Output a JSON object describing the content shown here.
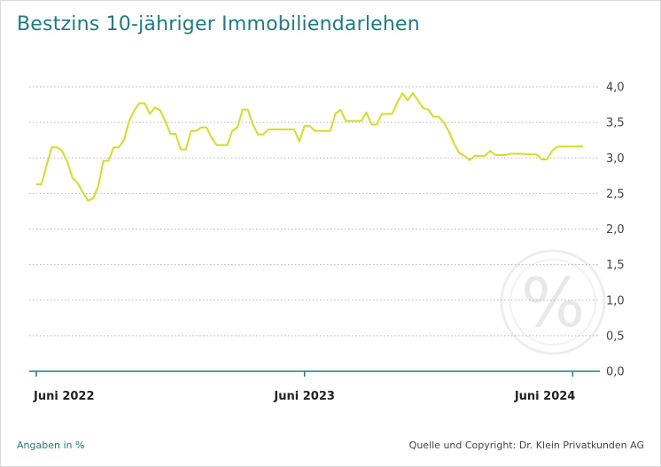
{
  "chart_data": {
    "type": "line",
    "title": "Bestzins 10-jähriger Immobiliendarlehen",
    "unit_note": "Angaben in %",
    "source": "Quelle und Copyright: Dr. Klein Privatkunden AG",
    "ylim": [
      0,
      4
    ],
    "yticks": [
      "0,0",
      "0,5",
      "1,0",
      "1,5",
      "2,0",
      "2,5",
      "3,0",
      "3,5",
      "4,0"
    ],
    "ytick_values": [
      0,
      0.5,
      1,
      1.5,
      2,
      2.5,
      3,
      3.5,
      4
    ],
    "xticks": [
      {
        "label": "Juni 2022",
        "index": 0
      },
      {
        "label": "Juni 2023",
        "index": 52
      },
      {
        "label": "Juni 2024",
        "index": 104
      }
    ],
    "grid": true,
    "line_color": "#d6dc20",
    "accent_color": "#1b7d84",
    "watermark_icon": "percent-icon",
    "series": [
      {
        "values": [
          2.63,
          2.63,
          2.9,
          3.15,
          3.15,
          3.1,
          2.95,
          2.72,
          2.65,
          2.52,
          2.4,
          2.43,
          2.6,
          2.96,
          2.96,
          3.15,
          3.15,
          3.25,
          3.52,
          3.67,
          3.77,
          3.77,
          3.62,
          3.71,
          3.67,
          3.52,
          3.34,
          3.34,
          3.12,
          3.12,
          3.38,
          3.38,
          3.43,
          3.43,
          3.28,
          3.18,
          3.18,
          3.18,
          3.38,
          3.43,
          3.68,
          3.68,
          3.47,
          3.33,
          3.33,
          3.4,
          3.4,
          3.4,
          3.4,
          3.4,
          3.4,
          3.23,
          3.45,
          3.45,
          3.38,
          3.38,
          3.38,
          3.38,
          3.62,
          3.68,
          3.52,
          3.52,
          3.52,
          3.52,
          3.64,
          3.47,
          3.47,
          3.62,
          3.62,
          3.62,
          3.78,
          3.91,
          3.81,
          3.91,
          3.81,
          3.7,
          3.68,
          3.58,
          3.58,
          3.5,
          3.37,
          3.2,
          3.07,
          3.03,
          2.97,
          3.03,
          3.03,
          3.03,
          3.1,
          3.04,
          3.04,
          3.04,
          3.06,
          3.06,
          3.06,
          3.05,
          3.05,
          3.05,
          2.98,
          2.98,
          3.1,
          3.16,
          3.16,
          3.16,
          3.16,
          3.16,
          3.16
        ]
      }
    ]
  }
}
